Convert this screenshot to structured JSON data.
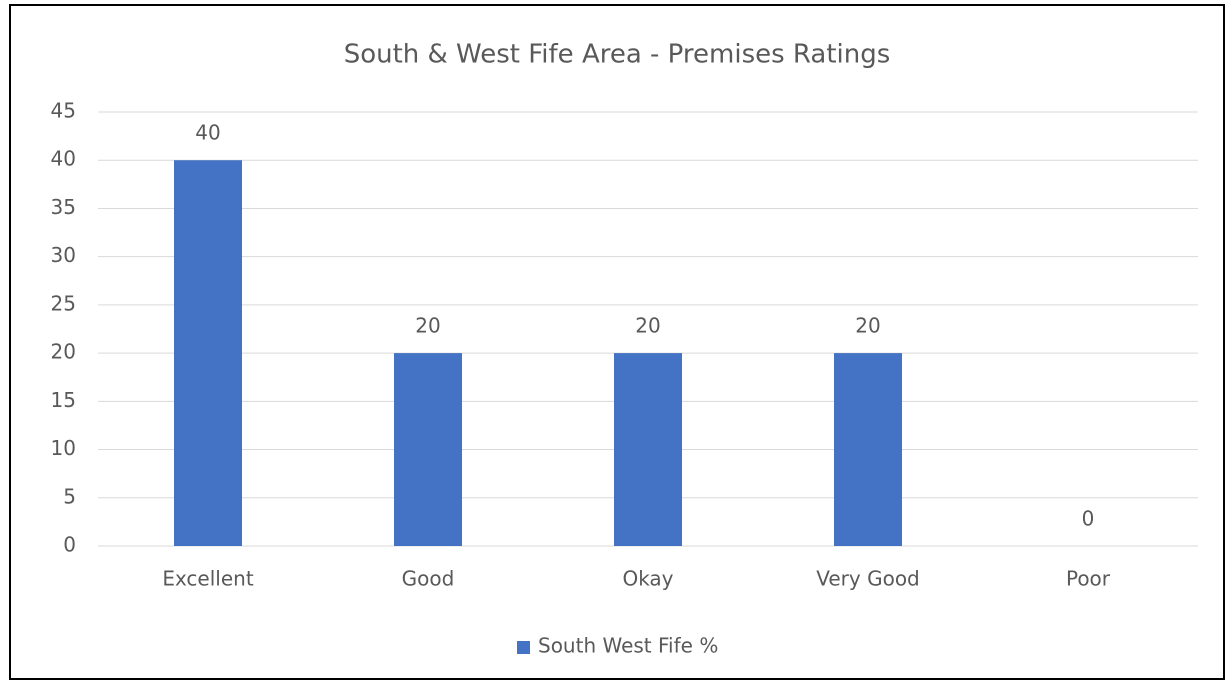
{
  "chart_data": {
    "type": "bar",
    "title": "South & West Fife Area - Premises Ratings",
    "categories": [
      "Excellent",
      "Good",
      "Okay",
      "Very Good",
      "Poor"
    ],
    "series": [
      {
        "name": "South West Fife %",
        "color": "#4472c4",
        "values": [
          40,
          20,
          20,
          20,
          0
        ]
      }
    ],
    "ylim": [
      0,
      45
    ],
    "yticks": [
      0,
      5,
      10,
      15,
      20,
      25,
      30,
      35,
      40,
      45
    ],
    "grid": true,
    "legend": "bottom"
  }
}
